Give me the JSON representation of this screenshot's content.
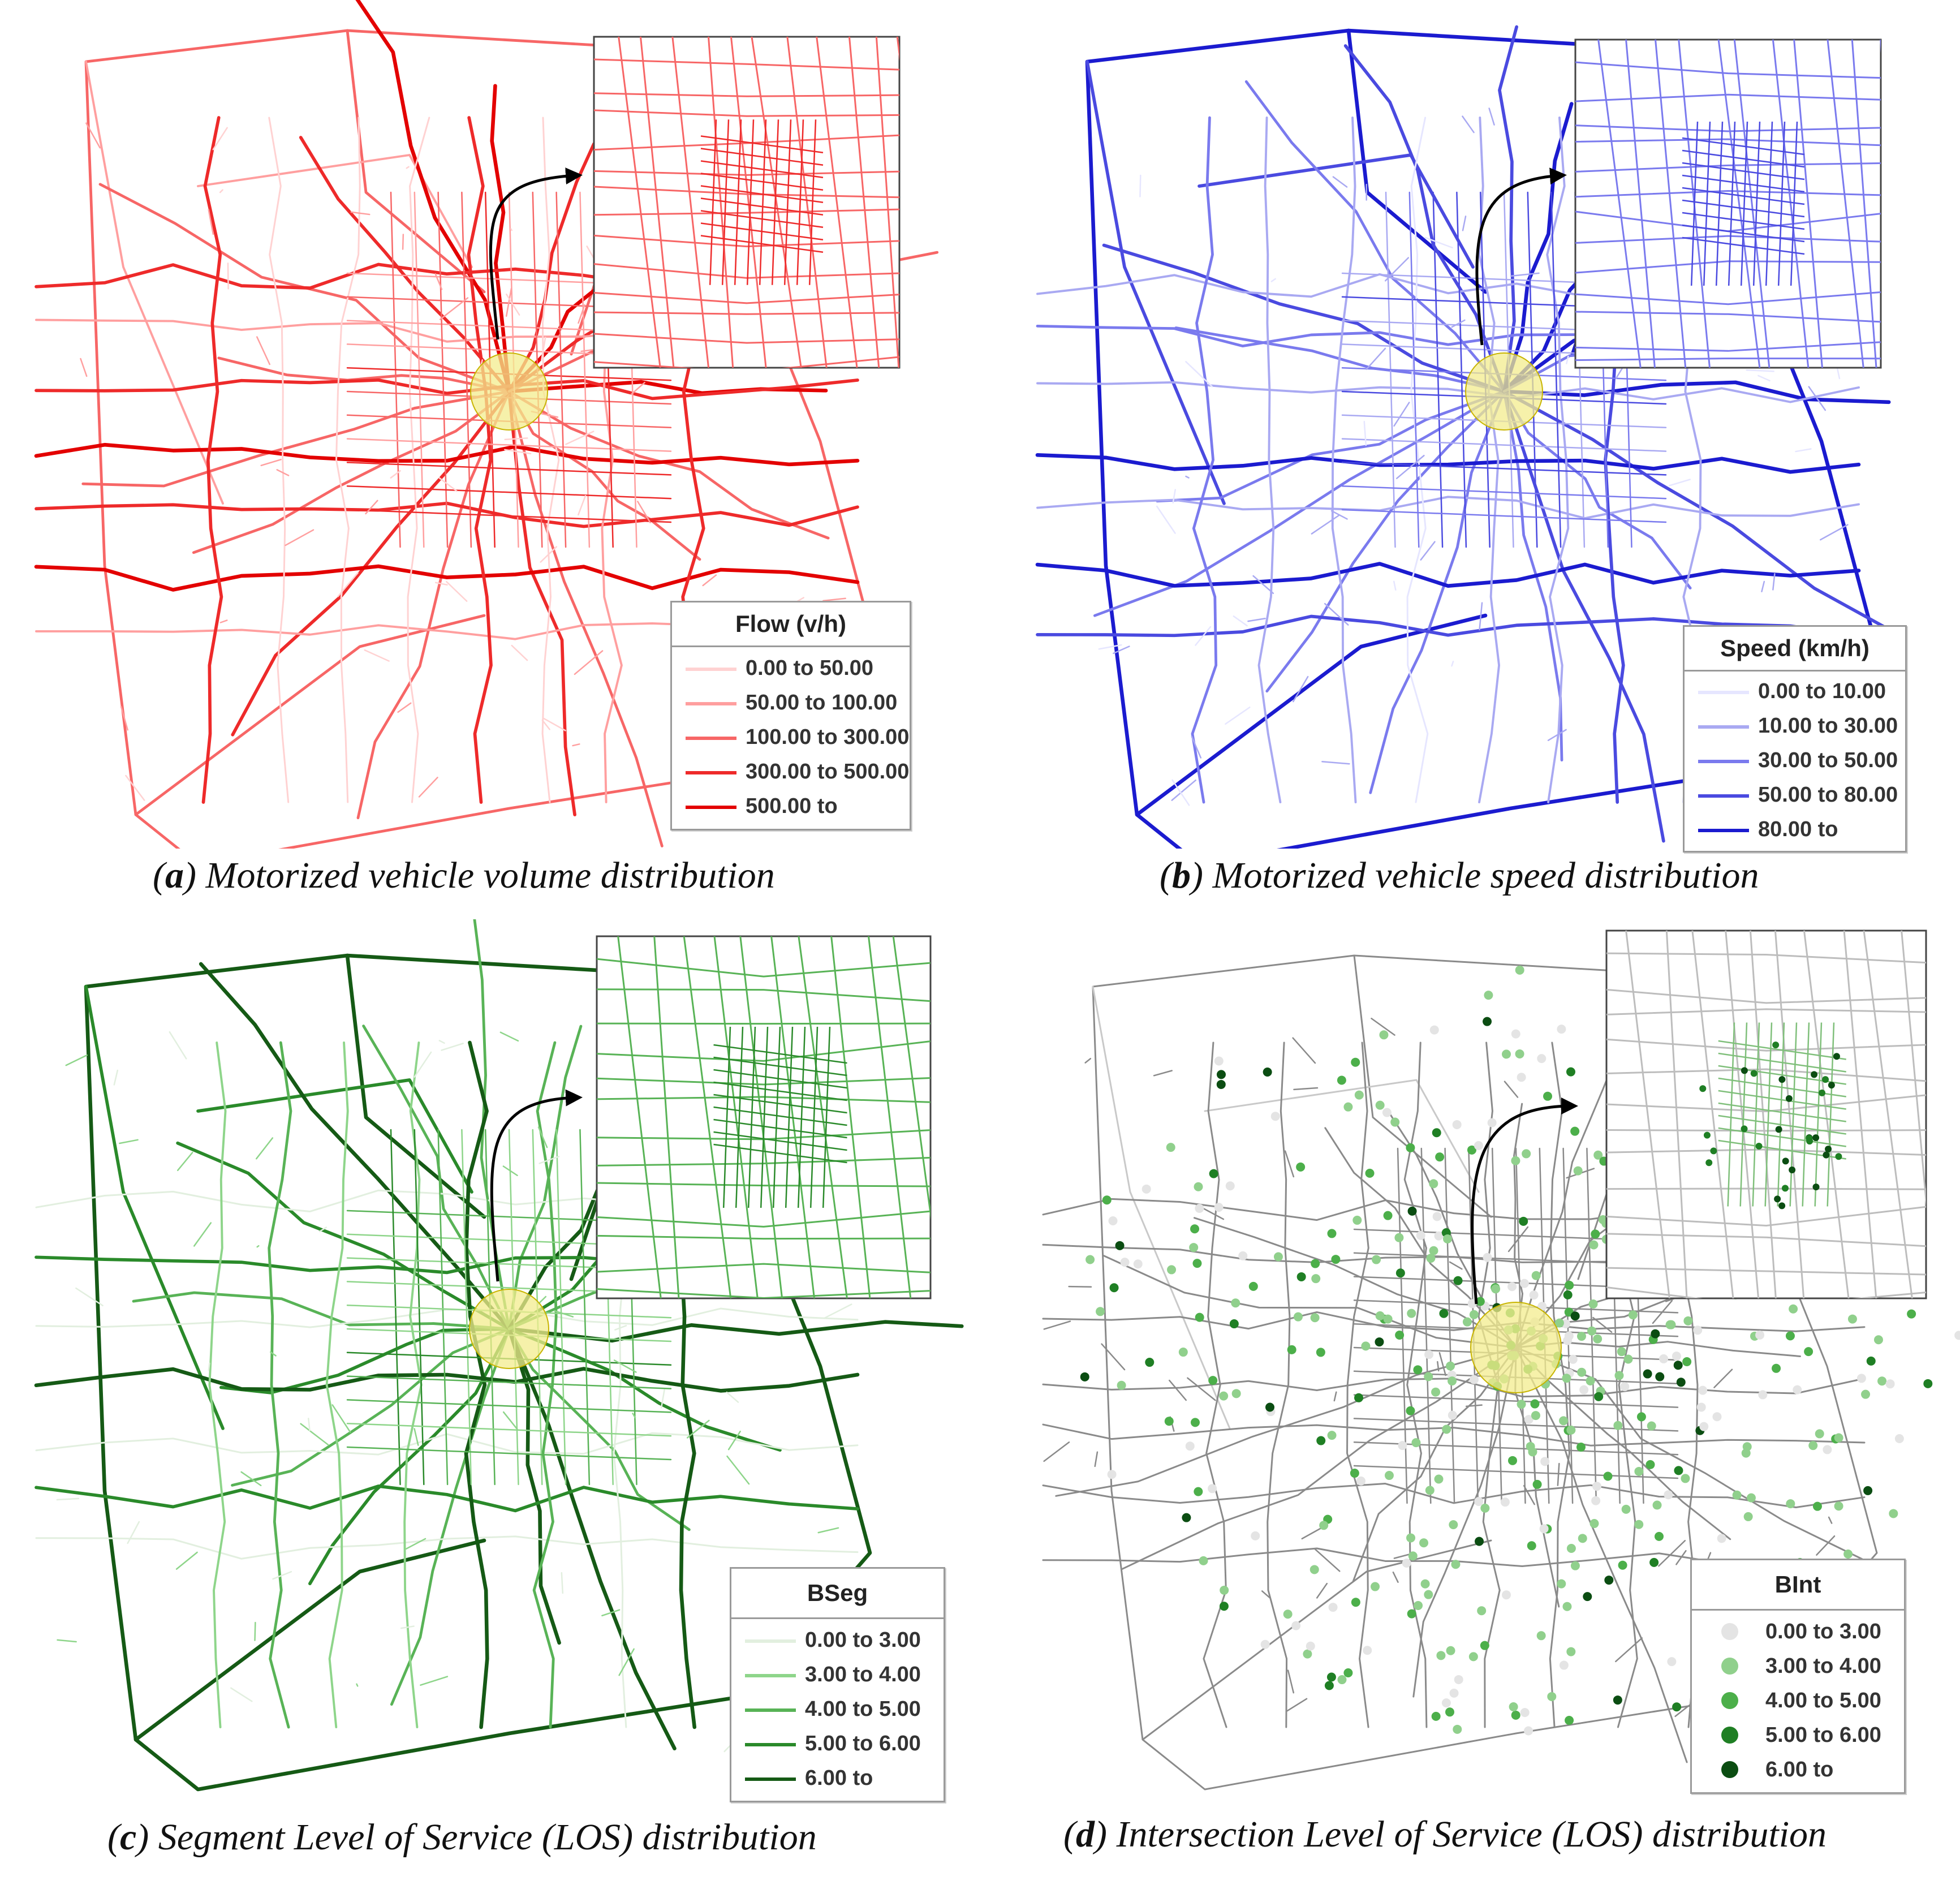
{
  "colors": {
    "a": [
      "#ffd2d2",
      "#ff9f9f",
      "#f76666",
      "#ee2a2a",
      "#e30000"
    ],
    "b": [
      "#e6e6ff",
      "#a9a9f2",
      "#7a7aee",
      "#4a4ae0",
      "#1b1bcf"
    ],
    "c": [
      "#e2efdf",
      "#8ed58a",
      "#58b356",
      "#2a8a2a",
      "#155a15"
    ],
    "d": [
      "#e4e4e4",
      "#90d08c",
      "#4caf4a",
      "#1f7f24",
      "#0b4d12"
    ],
    "d_lines": "#8a8a8a",
    "highlight": "#f3ec8e"
  },
  "panels": [
    {
      "id": "a",
      "caption_letter": "a",
      "caption_text": "Motorized vehicle volume distribution",
      "legend": {
        "title": "Flow (v/h)",
        "symbol": "line",
        "entries": [
          "0.00 to 50.00",
          "50.00 to 100.00",
          "100.00 to 300.00",
          "300.00 to 500.00",
          "500.00 to"
        ]
      }
    },
    {
      "id": "b",
      "caption_letter": "b",
      "caption_text": "Motorized vehicle speed distribution",
      "legend": {
        "title": "Speed (km/h)",
        "symbol": "line",
        "entries": [
          "0.00 to 10.00",
          "10.00 to 30.00",
          "30.00 to 50.00",
          "50.00 to 80.00",
          "80.00 to"
        ]
      }
    },
    {
      "id": "c",
      "caption_letter": "c",
      "caption_text": "Segment Level of Service (LOS) distribution",
      "legend": {
        "title": "BSeg",
        "symbol": "line",
        "entries": [
          "0.00 to 3.00",
          "3.00 to 4.00",
          "4.00 to 5.00",
          "5.00 to 6.00",
          "6.00 to"
        ]
      }
    },
    {
      "id": "d",
      "caption_letter": "d",
      "caption_text": "Intersection Level of Service (LOS) distribution",
      "legend": {
        "title": "BInt",
        "symbol": "dot",
        "entries": [
          "0.00 to 3.00",
          "3.00 to 4.00",
          "4.00 to 5.00",
          "5.00 to 6.00",
          "6.00 to"
        ]
      }
    }
  ]
}
